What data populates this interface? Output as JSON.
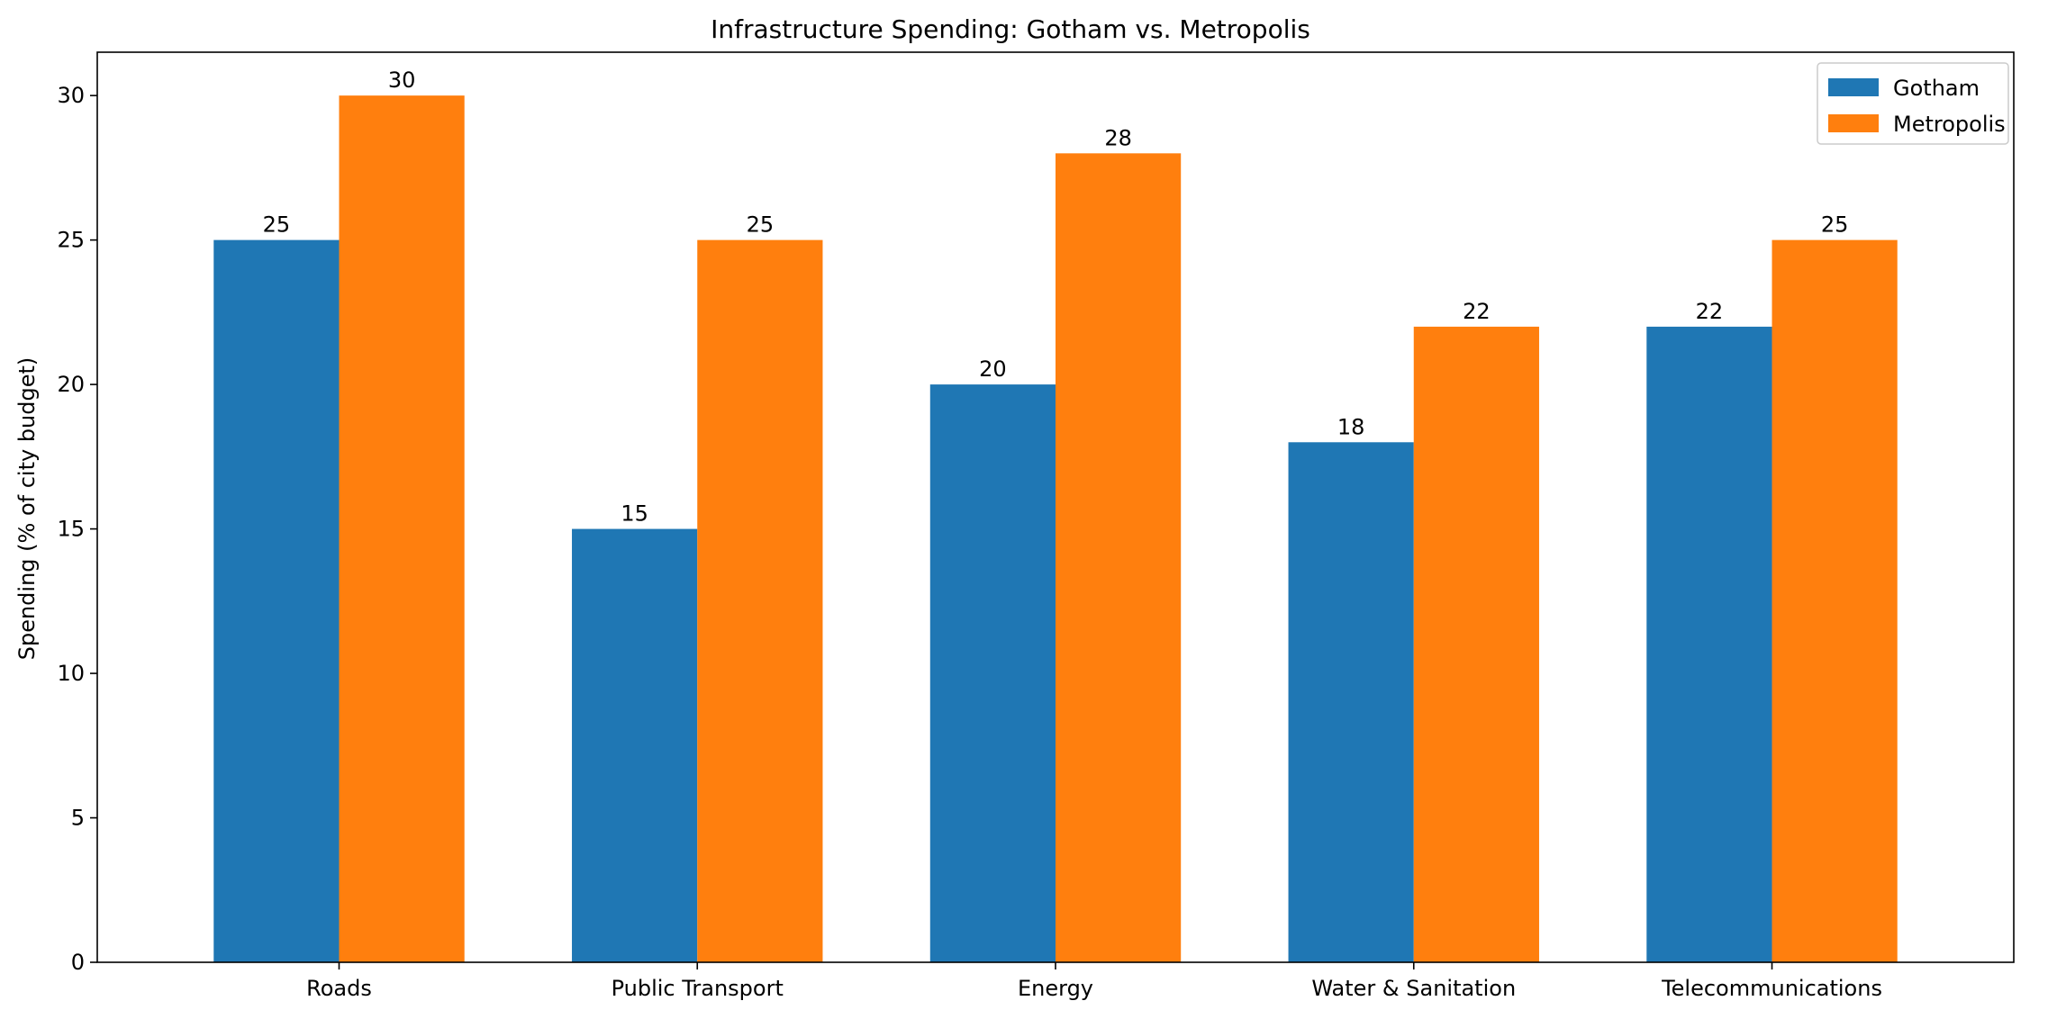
{
  "chart_data": {
    "type": "bar",
    "title": "Infrastructure Spending: Gotham vs. Metropolis",
    "xlabel": "",
    "ylabel": "Spending (% of city budget)",
    "categories": [
      "Roads",
      "Public Transport",
      "Energy",
      "Water & Sanitation",
      "Telecommunications"
    ],
    "series": [
      {
        "name": "Gotham",
        "color": "#1f77b4",
        "values": [
          25,
          15,
          20,
          18,
          22
        ]
      },
      {
        "name": "Metropolis",
        "color": "#ff7f0e",
        "values": [
          30,
          25,
          28,
          22,
          25
        ]
      }
    ],
    "ylim": [
      0,
      31.5
    ],
    "yticks": [
      0,
      5,
      10,
      15,
      20,
      25,
      30
    ],
    "grid": false,
    "legend_position": "top-right",
    "data_labels": true
  }
}
